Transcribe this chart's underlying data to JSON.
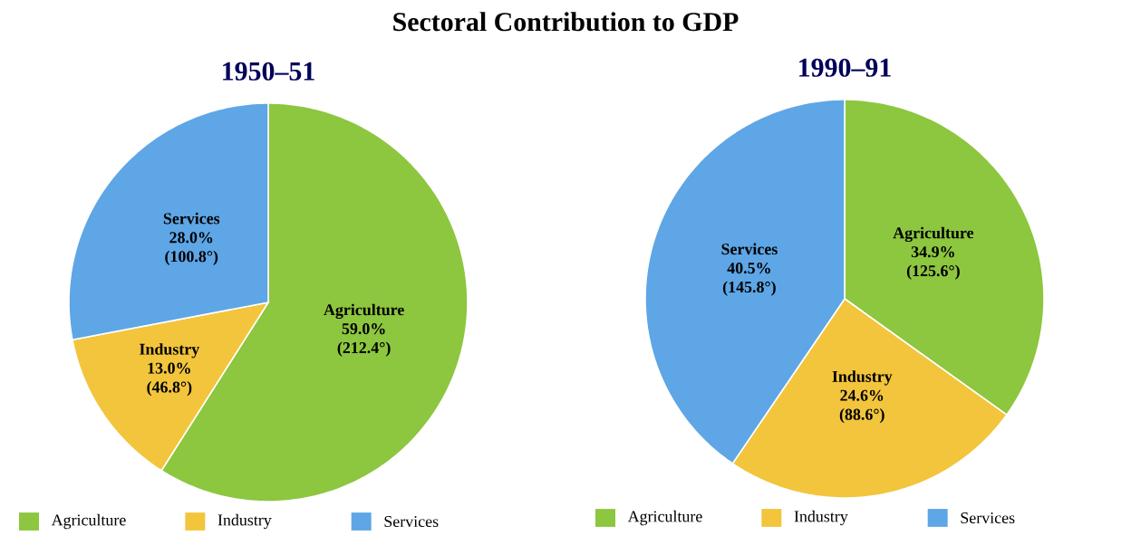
{
  "chart_data": [
    {
      "type": "pie",
      "title": "Sectoral Contribution to GDP",
      "subtitle": "1950–51",
      "categories": [
        "Agriculture",
        "Industry",
        "Services"
      ],
      "values": [
        59.0,
        13.0,
        28.0
      ],
      "value_labels": [
        "59.0% (212.4°)",
        "13.0% (46.8°)",
        "28.0% (100.8°)"
      ],
      "colors": [
        "#8dc63f",
        "#f2c53d",
        "#5ea6e6"
      ],
      "legend": "bottom"
    },
    {
      "type": "pie",
      "subtitle": "1990–91",
      "categories": [
        "Agriculture",
        "Industry",
        "Services"
      ],
      "values": [
        34.9,
        24.6,
        40.5
      ],
      "value_labels": [
        "34.9% (125.6°)",
        "24.6% (88.6°)",
        "40.5% (145.8°)"
      ],
      "colors": [
        "#8dc63f",
        "#f2c53d",
        "#5ea6e6"
      ],
      "legend": "bottom"
    }
  ]
}
